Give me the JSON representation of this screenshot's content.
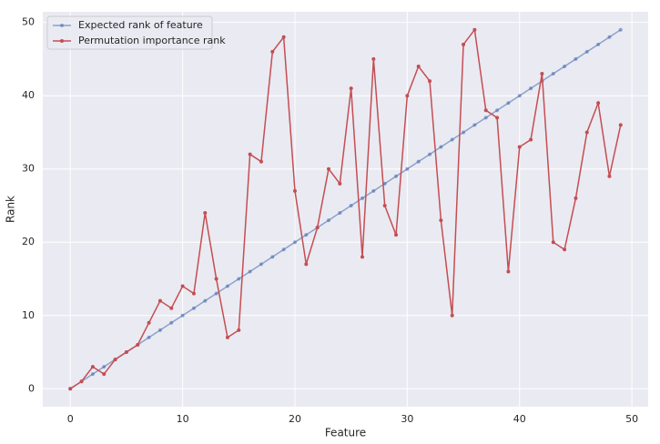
{
  "chart_data": {
    "type": "line",
    "xlabel": "Feature",
    "ylabel": "Rank",
    "x": [
      0,
      1,
      2,
      3,
      4,
      5,
      6,
      7,
      8,
      9,
      10,
      11,
      12,
      13,
      14,
      15,
      16,
      17,
      18,
      19,
      20,
      21,
      22,
      23,
      24,
      25,
      26,
      27,
      28,
      29,
      30,
      31,
      32,
      33,
      34,
      35,
      36,
      37,
      38,
      39,
      40,
      41,
      42,
      43,
      44,
      45,
      46,
      47,
      48,
      49
    ],
    "series": [
      {
        "name": "Expected rank of feature",
        "color": "#4c72b0",
        "values": [
          0,
          1,
          2,
          3,
          4,
          5,
          6,
          7,
          8,
          9,
          10,
          11,
          12,
          13,
          14,
          15,
          16,
          17,
          18,
          19,
          20,
          21,
          22,
          23,
          24,
          25,
          26,
          27,
          28,
          29,
          30,
          31,
          32,
          33,
          34,
          35,
          36,
          37,
          38,
          39,
          40,
          41,
          42,
          43,
          44,
          45,
          46,
          47,
          48,
          49
        ]
      },
      {
        "name": "Permutation importance rank",
        "color": "#c44e52",
        "values": [
          0,
          1,
          3,
          2,
          4,
          5,
          6,
          9,
          12,
          11,
          14,
          13,
          24,
          15,
          7,
          8,
          32,
          31,
          46,
          48,
          27,
          17,
          22,
          30,
          28,
          41,
          18,
          45,
          25,
          21,
          40,
          44,
          42,
          23,
          10,
          47,
          49,
          38,
          37,
          16,
          33,
          34,
          43,
          20,
          19,
          26,
          35,
          39,
          29,
          36
        ]
      }
    ],
    "xlim": [
      -2.45,
      51.45
    ],
    "ylim": [
      -2.45,
      51.45
    ],
    "xticks": [
      0,
      10,
      20,
      30,
      40,
      50
    ],
    "yticks": [
      0,
      10,
      20,
      30,
      40,
      50
    ],
    "grid": true,
    "legend": "upper-left"
  }
}
